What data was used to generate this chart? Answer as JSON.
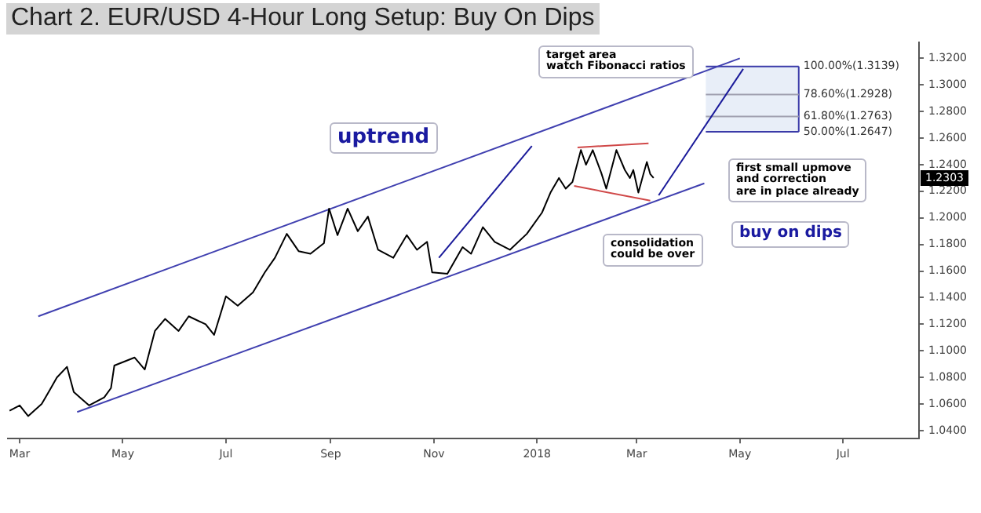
{
  "chart_data": {
    "type": "line",
    "title": "Chart 2. EUR/USD 4-Hour Long Setup: Buy On Dips",
    "series": [
      {
        "color": "#000000",
        "x": [
          "2017-02-23",
          "2017-03-01",
          "2017-03-06",
          "2017-03-14",
          "2017-03-19",
          "2017-03-23",
          "2017-03-29",
          "2017-04-02",
          "2017-04-11",
          "2017-04-20",
          "2017-04-24",
          "2017-04-26",
          "2017-05-08",
          "2017-05-14",
          "2017-05-20",
          "2017-05-26",
          "2017-06-03",
          "2017-06-09",
          "2017-06-19",
          "2017-06-24",
          "2017-07-01",
          "2017-07-08",
          "2017-07-17",
          "2017-07-24",
          "2017-07-30",
          "2017-08-06",
          "2017-08-13",
          "2017-08-20",
          "2017-08-28",
          "2017-08-31",
          "2017-09-05",
          "2017-09-11",
          "2017-09-17",
          "2017-09-23",
          "2017-09-29",
          "2017-10-08",
          "2017-10-16",
          "2017-10-22",
          "2017-10-28",
          "2017-10-31",
          "2017-11-09",
          "2017-11-18",
          "2017-11-23",
          "2017-11-30",
          "2017-12-07",
          "2017-12-16",
          "2017-12-26",
          "2018-01-04",
          "2018-01-09",
          "2018-01-14",
          "2018-01-18",
          "2018-01-22",
          "2018-01-27",
          "2018-01-30",
          "2018-02-03",
          "2018-02-08",
          "2018-02-11",
          "2018-02-17",
          "2018-02-22",
          "2018-02-25",
          "2018-02-27",
          "2018-03-02",
          "2018-03-05",
          "2018-03-07",
          "2018-03-09",
          "2018-03-11"
        ],
        "values": [
          1.055,
          1.059,
          1.051,
          1.06,
          1.071,
          1.08,
          1.088,
          1.069,
          1.059,
          1.065,
          1.072,
          1.089,
          1.095,
          1.086,
          1.115,
          1.124,
          1.115,
          1.126,
          1.12,
          1.112,
          1.141,
          1.134,
          1.144,
          1.159,
          1.17,
          1.188,
          1.175,
          1.173,
          1.181,
          1.207,
          1.187,
          1.207,
          1.19,
          1.201,
          1.176,
          1.17,
          1.187,
          1.176,
          1.182,
          1.159,
          1.158,
          1.178,
          1.173,
          1.193,
          1.182,
          1.176,
          1.188,
          1.204,
          1.219,
          1.23,
          1.222,
          1.227,
          1.251,
          1.24,
          1.251,
          1.234,
          1.222,
          1.251,
          1.236,
          1.23,
          1.236,
          1.219,
          1.233,
          1.242,
          1.233,
          1.23
        ]
      },
      {
        "color": "#4040b0",
        "x": [
          "2017-03-12",
          "2018-05-01"
        ],
        "values": [
          1.126,
          1.32
        ]
      },
      {
        "color": "#4040b0",
        "x": [
          "2017-04-04",
          "2018-04-10"
        ],
        "values": [
          1.054,
          1.226
        ]
      },
      {
        "color": "#d04848",
        "x": [
          "2018-01-25",
          "2018-03-08"
        ],
        "values": [
          1.253,
          1.256
        ]
      },
      {
        "color": "#d04848",
        "x": [
          "2018-01-23",
          "2018-03-09"
        ],
        "values": [
          1.224,
          1.213
        ]
      },
      {
        "color": "#1a1a9a",
        "x": [
          "2017-11-04",
          "2017-12-29"
        ],
        "values": [
          1.17,
          1.254
        ]
      },
      {
        "color": "#1a1a9a",
        "x": [
          "2018-03-14",
          "2018-05-03"
        ],
        "values": [
          1.217,
          1.312
        ]
      }
    ],
    "xlim": [
      "2017-02-22",
      "2018-08-15"
    ],
    "xticks": [
      {
        "value": "2017-03-01",
        "label": "Mar"
      },
      {
        "value": "2017-05-01",
        "label": "May"
      },
      {
        "value": "2017-07-01",
        "label": "Jul"
      },
      {
        "value": "2017-09-01",
        "label": "Sep"
      },
      {
        "value": "2017-11-01",
        "label": "Nov"
      },
      {
        "value": "2018-01-01",
        "label": "2018"
      },
      {
        "value": "2018-03-01",
        "label": "Mar"
      },
      {
        "value": "2018-05-01",
        "label": "May"
      },
      {
        "value": "2018-07-01",
        "label": "Jul"
      }
    ],
    "ylim": [
      1.034,
      1.332
    ],
    "yticks": [
      {
        "value": 1.04,
        "label": "1.0400"
      },
      {
        "value": 1.06,
        "label": "1.0600"
      },
      {
        "value": 1.08,
        "label": "1.0800"
      },
      {
        "value": 1.1,
        "label": "1.1000"
      },
      {
        "value": 1.12,
        "label": "1.1200"
      },
      {
        "value": 1.14,
        "label": "1.1400"
      },
      {
        "value": 1.16,
        "label": "1.1600"
      },
      {
        "value": 1.18,
        "label": "1.1800"
      },
      {
        "value": 1.2,
        "label": "1.2000"
      },
      {
        "value": 1.22,
        "label": "1.2200"
      },
      {
        "value": 1.24,
        "label": "1.2400"
      },
      {
        "value": 1.26,
        "label": "1.2600"
      },
      {
        "value": 1.28,
        "label": "1.2800"
      },
      {
        "value": 1.3,
        "label": "1.3000"
      },
      {
        "value": 1.32,
        "label": "1.3200"
      }
    ],
    "bands": [
      {
        "axis": "y",
        "from": 1.2647,
        "to": 1.3139,
        "color": "#e8eef8"
      }
    ],
    "ref_lines": [
      {
        "axis": "y",
        "value": 1.3139,
        "label": "100.00%(1.3139)",
        "color": "#3a3aa8"
      },
      {
        "axis": "y",
        "value": 1.2928,
        "label": "78.60%(1.2928)",
        "color": "#a0a0b0"
      },
      {
        "axis": "y",
        "value": 1.2763,
        "label": "61.80%(1.2763)",
        "color": "#a0a0b0"
      },
      {
        "axis": "y",
        "value": 1.2647,
        "label": "50.00%(1.2647)",
        "color": "#3a3aa8"
      }
    ],
    "annotations": [
      "uptrend",
      "target area\nwatch Fibonacci ratios",
      "first small upmove\nand correction\nare in place already",
      "consolidation\ncould be over",
      "buy on dips",
      "1.2303"
    ],
    "grid": false,
    "legend": false,
    "marker": "none",
    "line_style": "solid"
  }
}
